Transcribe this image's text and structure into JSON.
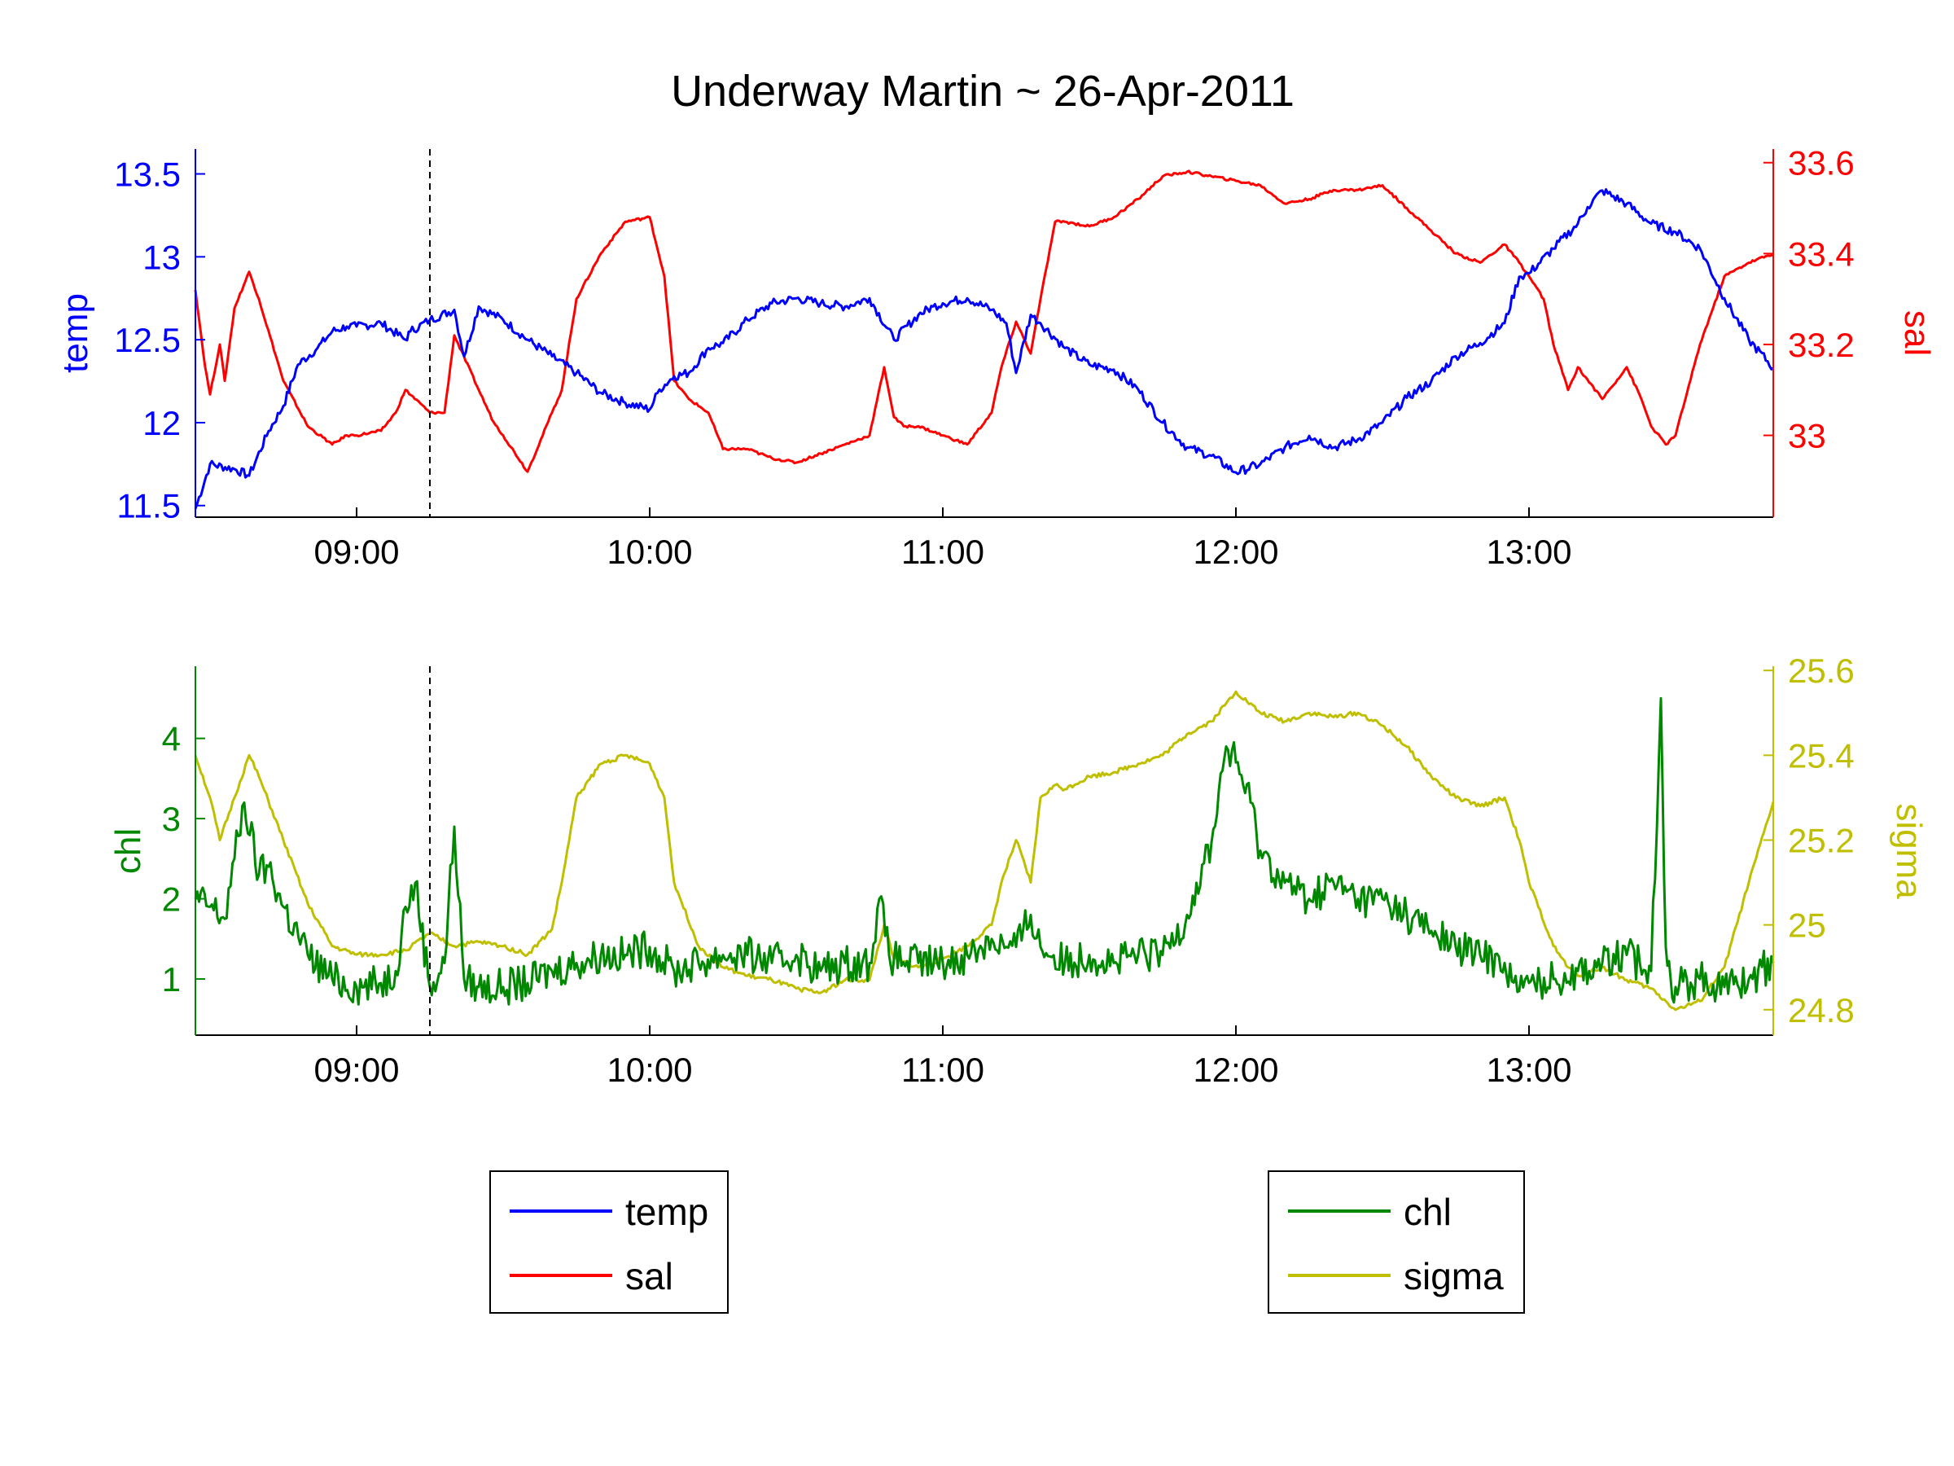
{
  "figure_title": "Underway Martin ~ 26-Apr-2011",
  "colors": {
    "temp": "#0000FF",
    "sal": "#FF0000",
    "chl": "#008800",
    "sigma": "#BFBF00",
    "axis": "#000000",
    "marker": "#000000"
  },
  "chart_data": [
    {
      "type": "line",
      "title": "Underway Martin ~ 26-Apr-2011",
      "x_axis": {
        "type": "time",
        "range": [
          "08:27",
          "13:50"
        ],
        "ticks": [
          "09:00",
          "10:00",
          "11:00",
          "12:00",
          "13:00"
        ]
      },
      "y_axes": [
        {
          "side": "left",
          "label": "temp",
          "color": "#0000FF",
          "range": [
            11.43,
            13.65
          ],
          "ticks": [
            "11.5",
            "12",
            "12.5",
            "13",
            "13.5"
          ]
        },
        {
          "side": "right",
          "label": "sal",
          "color": "#FF0000",
          "range": [
            32.82,
            33.63
          ],
          "ticks": [
            "33",
            "33.2",
            "33.4",
            "33.6"
          ]
        }
      ],
      "vertical_marker": {
        "x": "09:15",
        "style": "dashed"
      },
      "legend": {
        "placement": "bottom-left",
        "entries": [
          "temp",
          "sal"
        ]
      },
      "series": [
        {
          "name": "temp",
          "axis": "left",
          "color": "#0000FF",
          "x": [
            "08:27",
            "08:30",
            "08:35",
            "08:38",
            "08:42",
            "08:45",
            "08:48",
            "08:52",
            "08:55",
            "08:58",
            "09:00",
            "09:05",
            "09:10",
            "09:11",
            "09:15",
            "09:20",
            "09:22",
            "09:25",
            "09:30",
            "09:35",
            "09:40",
            "09:45",
            "09:50",
            "09:55",
            "10:00",
            "10:02",
            "10:05",
            "10:08",
            "10:12",
            "10:15",
            "10:20",
            "10:25",
            "10:30",
            "10:35",
            "10:40",
            "10:45",
            "10:50",
            "10:55",
            "10:58",
            "11:00",
            "11:05",
            "11:10",
            "11:13",
            "11:15",
            "11:18",
            "11:20",
            "11:25",
            "11:30",
            "11:35",
            "11:40",
            "11:45",
            "11:50",
            "11:55",
            "12:00",
            "12:05",
            "12:10",
            "12:15",
            "12:20",
            "12:25",
            "12:30",
            "12:35",
            "12:40",
            "12:45",
            "12:50",
            "12:55",
            "12:58",
            "13:00",
            "13:05",
            "13:10",
            "13:12",
            "13:15",
            "13:20",
            "13:25",
            "13:30",
            "13:35",
            "13:40",
            "13:45",
            "13:50"
          ],
          "y": [
            11.48,
            11.75,
            11.72,
            11.68,
            11.95,
            12.1,
            12.35,
            12.45,
            12.55,
            12.58,
            12.58,
            12.6,
            12.5,
            12.55,
            12.62,
            12.68,
            12.4,
            12.7,
            12.62,
            12.5,
            12.4,
            12.3,
            12.18,
            12.12,
            12.08,
            12.2,
            12.28,
            12.3,
            12.45,
            12.48,
            12.62,
            12.72,
            12.75,
            12.72,
            12.7,
            12.75,
            12.5,
            12.65,
            12.7,
            12.72,
            12.75,
            12.68,
            12.6,
            12.3,
            12.65,
            12.6,
            12.45,
            12.35,
            12.32,
            12.2,
            12.0,
            11.85,
            11.8,
            11.7,
            11.75,
            11.85,
            11.92,
            11.85,
            11.9,
            12.0,
            12.15,
            12.25,
            12.4,
            12.48,
            12.6,
            12.88,
            12.9,
            13.05,
            13.2,
            13.3,
            13.4,
            13.32,
            13.2,
            13.15,
            13.05,
            12.75,
            12.5,
            12.33
          ]
        },
        {
          "name": "sal",
          "axis": "right",
          "color": "#FF0000",
          "x": [
            "08:27",
            "08:29",
            "08:30",
            "08:32",
            "08:33",
            "08:35",
            "08:38",
            "08:40",
            "08:45",
            "08:50",
            "08:55",
            "08:58",
            "09:00",
            "09:05",
            "09:08",
            "09:10",
            "09:15",
            "09:18",
            "09:20",
            "09:25",
            "09:28",
            "09:30",
            "09:35",
            "09:40",
            "09:42",
            "09:45",
            "09:50",
            "09:55",
            "10:00",
            "10:03",
            "10:05",
            "10:08",
            "10:12",
            "10:15",
            "10:20",
            "10:25",
            "10:30",
            "10:35",
            "10:40",
            "10:45",
            "10:48",
            "10:50",
            "10:52",
            "10:55",
            "11:00",
            "11:05",
            "11:10",
            "11:12",
            "11:15",
            "11:18",
            "11:20",
            "11:23",
            "11:25",
            "11:30",
            "11:35",
            "11:40",
            "11:45",
            "11:50",
            "11:55",
            "12:00",
            "12:05",
            "12:10",
            "12:15",
            "12:20",
            "12:25",
            "12:30",
            "12:35",
            "12:40",
            "12:45",
            "12:50",
            "12:55",
            "12:58",
            "13:00",
            "13:03",
            "13:05",
            "13:08",
            "13:10",
            "13:15",
            "13:20",
            "13:23",
            "13:25",
            "13:28",
            "13:30",
            "13:35",
            "13:40",
            "13:45",
            "13:50"
          ],
          "y": [
            33.32,
            33.15,
            33.09,
            33.2,
            33.12,
            33.28,
            33.36,
            33.3,
            33.12,
            33.02,
            32.98,
            33.0,
            33.0,
            33.01,
            33.05,
            33.1,
            33.05,
            33.05,
            33.22,
            33.1,
            33.03,
            33.0,
            32.92,
            33.05,
            33.1,
            33.3,
            33.4,
            33.47,
            33.48,
            33.35,
            33.12,
            33.08,
            33.05,
            32.97,
            32.97,
            32.95,
            32.94,
            32.96,
            32.98,
            33.0,
            33.15,
            33.04,
            33.02,
            33.02,
            33.0,
            32.98,
            33.05,
            33.15,
            33.25,
            33.18,
            33.3,
            33.47,
            33.47,
            33.46,
            33.48,
            33.52,
            33.57,
            33.58,
            33.57,
            33.56,
            33.55,
            33.51,
            33.52,
            33.54,
            33.54,
            33.55,
            33.5,
            33.45,
            33.4,
            33.38,
            33.42,
            33.38,
            33.35,
            33.3,
            33.2,
            33.1,
            33.15,
            33.08,
            33.15,
            33.08,
            33.02,
            32.98,
            33.0,
            33.2,
            33.35,
            33.38,
            33.4
          ]
        }
      ]
    },
    {
      "type": "line",
      "x_axis": {
        "type": "time",
        "range": [
          "08:27",
          "13:50"
        ],
        "ticks": [
          "09:00",
          "10:00",
          "11:00",
          "12:00",
          "13:00"
        ]
      },
      "y_axes": [
        {
          "side": "left",
          "label": "chl",
          "color": "#008800",
          "range": [
            0.3,
            4.9
          ],
          "ticks": [
            "1",
            "2",
            "3",
            "4"
          ]
        },
        {
          "side": "right",
          "label": "sigma",
          "color": "#BFBF00",
          "range": [
            24.74,
            25.61
          ],
          "ticks": [
            "24.8",
            "25",
            "25.2",
            "25.4",
            "25.6"
          ]
        }
      ],
      "vertical_marker": {
        "x": "09:15",
        "style": "dashed"
      },
      "legend": {
        "placement": "bottom-right",
        "entries": [
          "chl",
          "sigma"
        ]
      },
      "series": [
        {
          "name": "chl",
          "axis": "left",
          "color": "#008800",
          "x": [
            "08:27",
            "08:30",
            "08:33",
            "08:35",
            "08:37",
            "08:40",
            "08:42",
            "08:45",
            "08:50",
            "08:55",
            "09:00",
            "09:05",
            "09:08",
            "09:10",
            "09:12",
            "09:15",
            "09:18",
            "09:20",
            "09:22",
            "09:25",
            "09:30",
            "09:35",
            "09:40",
            "09:45",
            "09:50",
            "09:55",
            "10:00",
            "10:05",
            "10:10",
            "10:15",
            "10:20",
            "10:25",
            "10:30",
            "10:35",
            "10:40",
            "10:45",
            "10:47",
            "10:49",
            "10:50",
            "10:55",
            "11:00",
            "11:05",
            "11:10",
            "11:13",
            "11:15",
            "11:18",
            "11:20",
            "11:25",
            "11:30",
            "11:35",
            "11:40",
            "11:45",
            "11:50",
            "11:55",
            "11:58",
            "12:00",
            "12:03",
            "12:05",
            "12:10",
            "12:15",
            "12:20",
            "12:25",
            "12:30",
            "12:35",
            "12:40",
            "12:45",
            "12:50",
            "12:55",
            "12:58",
            "13:00",
            "13:05",
            "13:10",
            "13:15",
            "13:20",
            "13:25",
            "13:27",
            "13:28",
            "13:29",
            "13:30",
            "13:35",
            "13:40",
            "13:45",
            "13:50"
          ],
          "y": [
            2.0,
            1.9,
            1.75,
            2.5,
            3.2,
            2.3,
            2.4,
            1.9,
            1.3,
            1.0,
            0.9,
            0.95,
            1.1,
            1.9,
            2.2,
            0.9,
            1.2,
            2.9,
            1.0,
            0.9,
            0.9,
            0.95,
            1.1,
            1.2,
            1.3,
            1.3,
            1.4,
            1.1,
            1.2,
            1.3,
            1.3,
            1.2,
            1.3,
            1.1,
            1.2,
            1.2,
            2.0,
            1.3,
            1.25,
            1.2,
            1.2,
            1.3,
            1.5,
            1.4,
            1.4,
            1.8,
            1.4,
            1.2,
            1.3,
            1.2,
            1.3,
            1.3,
            1.8,
            2.7,
            3.9,
            3.7,
            3.2,
            2.6,
            2.2,
            2.0,
            2.2,
            2.0,
            2.0,
            1.8,
            1.6,
            1.4,
            1.3,
            1.2,
            0.85,
            0.95,
            1.0,
            1.1,
            1.2,
            1.3,
            1.1,
            4.5,
            1.4,
            1.0,
            0.9,
            1.0,
            0.9,
            1.0,
            1.2
          ]
        },
        {
          "name": "sigma",
          "axis": "right",
          "color": "#BFBF00",
          "x": [
            "08:27",
            "08:30",
            "08:32",
            "08:35",
            "08:38",
            "08:40",
            "08:45",
            "08:50",
            "08:55",
            "09:00",
            "09:05",
            "09:10",
            "09:15",
            "09:20",
            "09:25",
            "09:30",
            "09:35",
            "09:40",
            "09:42",
            "09:45",
            "09:50",
            "09:55",
            "10:00",
            "10:03",
            "10:05",
            "10:10",
            "10:15",
            "10:20",
            "10:25",
            "10:30",
            "10:35",
            "10:40",
            "10:45",
            "10:48",
            "10:50",
            "10:55",
            "11:00",
            "11:05",
            "11:10",
            "11:12",
            "11:15",
            "11:18",
            "11:20",
            "11:23",
            "11:25",
            "11:30",
            "11:35",
            "11:40",
            "11:45",
            "11:50",
            "11:55",
            "12:00",
            "12:05",
            "12:10",
            "12:15",
            "12:20",
            "12:25",
            "12:30",
            "12:35",
            "12:40",
            "12:45",
            "12:50",
            "12:55",
            "12:58",
            "13:00",
            "13:05",
            "13:08",
            "13:10",
            "13:15",
            "13:20",
            "13:25",
            "13:30",
            "13:35",
            "13:40",
            "13:45",
            "13:50"
          ],
          "y": [
            25.4,
            25.3,
            25.2,
            25.3,
            25.4,
            25.35,
            25.2,
            25.05,
            24.95,
            24.93,
            24.93,
            24.94,
            24.98,
            24.95,
            24.96,
            24.95,
            24.93,
            24.99,
            25.1,
            25.3,
            25.38,
            25.4,
            25.38,
            25.3,
            25.1,
            24.95,
            24.9,
            24.88,
            24.87,
            24.85,
            24.84,
            24.87,
            24.87,
            25.0,
            24.92,
            24.9,
            24.92,
            24.95,
            25.0,
            25.1,
            25.2,
            25.1,
            25.3,
            25.33,
            25.32,
            25.35,
            25.36,
            25.38,
            25.4,
            25.45,
            25.48,
            25.55,
            25.5,
            25.48,
            25.5,
            25.49,
            25.5,
            25.47,
            25.42,
            25.35,
            25.3,
            25.28,
            25.3,
            25.2,
            25.1,
            24.95,
            24.9,
            24.88,
            24.9,
            24.87,
            24.85,
            24.8,
            24.82,
            24.9,
            25.1,
            25.29
          ]
        }
      ]
    }
  ]
}
